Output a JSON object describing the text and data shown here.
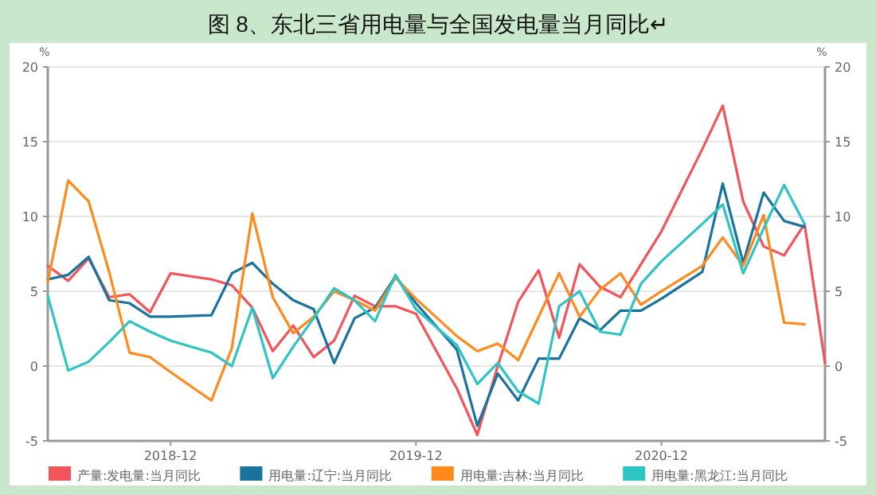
{
  "chart_data": {
    "type": "line",
    "title": "图 8、东北三省用电量与全国发电量当月同比↵",
    "ylabel": "%",
    "y2label": "%",
    "x": [
      "2018-06",
      "2018-07",
      "2018-08",
      "2018-09",
      "2018-10",
      "2018-11",
      "2018-12",
      "2019-02",
      "2019-03",
      "2019-04",
      "2019-05",
      "2019-06",
      "2019-07",
      "2019-08",
      "2019-09",
      "2019-10",
      "2019-11",
      "2019-12",
      "2020-02",
      "2020-03",
      "2020-04",
      "2020-05",
      "2020-06",
      "2020-07",
      "2020-08",
      "2020-09",
      "2020-10",
      "2020-11",
      "2020-12",
      "2021-02",
      "2021-03",
      "2021-04",
      "2021-05",
      "2021-06",
      "2021-07",
      "2021-08"
    ],
    "series": [
      {
        "name": "产量:发电量:当月同比",
        "color": "#f2545b",
        "values": [
          6.7,
          5.7,
          7.2,
          4.6,
          4.8,
          3.6,
          6.2,
          5.8,
          5.4,
          3.9,
          1.0,
          2.7,
          0.6,
          1.7,
          4.7,
          4.0,
          4.0,
          3.5,
          -1.5,
          -4.6,
          0.0,
          4.3,
          6.4,
          1.9,
          6.8,
          5.3,
          4.6,
          6.8,
          9.0,
          14.5,
          17.4,
          11.0,
          8.0,
          7.4,
          9.5,
          0.2
        ]
      },
      {
        "name": "用电量:辽宁:当月同比",
        "color": "#1a739c",
        "values": [
          5.8,
          6.1,
          7.3,
          4.4,
          4.2,
          3.3,
          3.3,
          3.4,
          6.2,
          6.9,
          5.5,
          4.4,
          3.8,
          0.2,
          3.2,
          3.9,
          6.0,
          4.2,
          1.1,
          -4.0,
          -0.5,
          -2.3,
          0.5,
          0.5,
          3.2,
          2.4,
          3.7,
          3.7,
          4.5,
          6.3,
          12.2,
          6.9,
          11.6,
          9.7,
          9.3,
          null
        ]
      },
      {
        "name": "用电量:吉林:当月同比",
        "color": "#ff8a1c",
        "values": [
          5.6,
          12.4,
          11.0,
          6.3,
          0.9,
          0.6,
          -0.4,
          -2.3,
          1.2,
          10.2,
          4.6,
          2.2,
          3.3,
          5.0,
          4.4,
          3.7,
          5.9,
          4.5,
          2.0,
          1.0,
          1.5,
          0.4,
          3.3,
          6.2,
          3.3,
          5.1,
          6.2,
          4.1,
          5.0,
          6.7,
          8.6,
          6.7,
          10.1,
          2.9,
          2.8,
          null
        ]
      },
      {
        "name": "用电量:黑龙江:当月同比",
        "color": "#2ec4c4",
        "values": [
          4.7,
          -0.3,
          0.3,
          1.6,
          3.0,
          2.3,
          1.7,
          0.9,
          0.0,
          3.9,
          -0.8,
          1.3,
          3.2,
          5.2,
          4.4,
          3.0,
          6.1,
          3.8,
          1.4,
          -1.2,
          0.2,
          -1.7,
          -2.5,
          4.0,
          5.0,
          2.3,
          2.1,
          5.5,
          7.0,
          9.5,
          10.8,
          6.2,
          9.2,
          12.1,
          9.5,
          null
        ]
      }
    ],
    "xlim": [
      "2018-06",
      "2021-08"
    ],
    "xticks": [
      "2018-12",
      "2019-12",
      "2020-12"
    ],
    "ylim": [
      -5,
      20
    ],
    "yticks": [
      -5,
      0,
      5,
      10,
      15,
      20
    ],
    "y2lim": [
      -5,
      20
    ],
    "y2ticks": [
      -5,
      0,
      5,
      10,
      15,
      20
    ],
    "grid": "y",
    "legend": "bottom",
    "marker": "none",
    "line_style": "solid"
  }
}
